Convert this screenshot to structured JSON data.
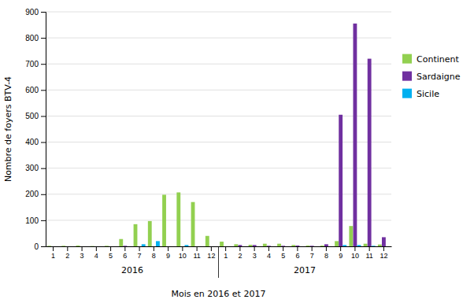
{
  "chart_data": {
    "type": "bar",
    "xlabel": "Mois en 2016 et 2017",
    "ylabel": "Nombre de foyers BTV-4",
    "categories": [
      "1",
      "2",
      "3",
      "4",
      "5",
      "6",
      "7",
      "8",
      "9",
      "10",
      "11",
      "12",
      "1",
      "2",
      "3",
      "4",
      "5",
      "6",
      "7",
      "8",
      "9",
      "10",
      "11",
      "12"
    ],
    "series": [
      {
        "name": "Continent",
        "color": "#92D050",
        "values": [
          2,
          2,
          3,
          1,
          2,
          28,
          85,
          97,
          198,
          207,
          170,
          40,
          18,
          8,
          6,
          10,
          10,
          5,
          3,
          3,
          20,
          78,
          10,
          7
        ]
      },
      {
        "name": "Sardaigne",
        "color": "#7030A0",
        "values": [
          0,
          0,
          0,
          0,
          0,
          2,
          0,
          0,
          0,
          0,
          0,
          0,
          0,
          5,
          5,
          2,
          2,
          3,
          2,
          8,
          505,
          855,
          720,
          35
        ]
      },
      {
        "name": "Sicile",
        "color": "#00B0F0",
        "values": [
          0,
          0,
          0,
          0,
          0,
          0,
          8,
          20,
          0,
          5,
          0,
          0,
          0,
          0,
          0,
          0,
          0,
          0,
          0,
          0,
          5,
          5,
          2,
          0
        ]
      }
    ],
    "annotations": [
      {
        "text": "2016"
      },
      {
        "text": "2017"
      }
    ],
    "ylim": [
      0,
      900
    ],
    "yticks": [
      0,
      100,
      200,
      300,
      400,
      500,
      600,
      700,
      800,
      900
    ],
    "grid": true,
    "legend": "right"
  }
}
